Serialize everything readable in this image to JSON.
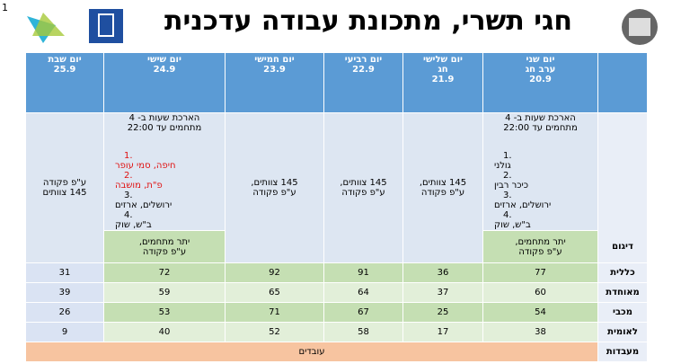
{
  "slide_number": "1",
  "title": "חגי תשרי, מתכונת עבודה עדכנית",
  "table": {
    "columns": [
      {
        "header": [
          "יום שני",
          "ערב חג",
          "20.9"
        ]
      },
      {
        "header": [
          "יום שלישי",
          "חג",
          "21.9"
        ]
      },
      {
        "header": [
          "יום רביעי",
          "22.9"
        ]
      },
      {
        "header": [
          "יום חמישי",
          "23.9"
        ]
      },
      {
        "header": [
          "יום שישי",
          "24.9"
        ]
      },
      {
        "header": [
          "יום שבת",
          "25.9"
        ]
      }
    ],
    "sampling": {
      "label": "דיגום",
      "cells": [
        {
          "intro": [
            "הארכת שעות ב- 4",
            "מתחמים עד 22:00"
          ],
          "items": [
            {
              "num": "1.",
              "text": "גולני"
            },
            {
              "num": "2.",
              "text": "כיכר רבין"
            },
            {
              "num": "3.",
              "text": "ירושלים, ארזים"
            },
            {
              "num": "4.",
              "text": "ב\"ש, שוק"
            }
          ],
          "green": [
            "יתר מתחמים,",
            "ע\"פ פקודה"
          ]
        },
        {
          "lines": [
            "145 צוותים,",
            "ע\"פ פקודה"
          ]
        },
        {
          "lines": [
            "145 צוותים,",
            "ע\"פ פקודה"
          ]
        },
        {
          "lines": [
            "145 צוותים,",
            "ע\"פ פקודה"
          ]
        },
        {
          "intro": [
            "הארכת שעות ב- 4",
            "מתחמים עד 22:00"
          ],
          "items": [
            {
              "num": "1.",
              "text": "חיפה, סמי עופר",
              "color": "#e01010"
            },
            {
              "num": "2.",
              "text": "פ\"ת, מושבה",
              "color": "#e01010"
            },
            {
              "num": "3.",
              "text": "ירושלים, ארזים"
            },
            {
              "num": "4.",
              "text": "ב\"ש, שוק"
            }
          ],
          "green": [
            "יתר מתחמים,",
            "ע\"פ פקודה"
          ]
        },
        {
          "lines": [
            "ע\"פ פקודה",
            "145 צוותים"
          ]
        }
      ]
    },
    "rows": [
      {
        "label": "כללית",
        "values": [
          77,
          36,
          91,
          92,
          72,
          31
        ]
      },
      {
        "label": "מאוחדת",
        "values": [
          60,
          37,
          64,
          65,
          59,
          39
        ]
      },
      {
        "label": "מכבי",
        "values": [
          54,
          25,
          67,
          71,
          53,
          26
        ]
      },
      {
        "label": "לאומית",
        "values": [
          38,
          17,
          58,
          52,
          40,
          9
        ]
      }
    ],
    "labs": {
      "label": "מעבדות",
      "text": "עובדים"
    }
  }
}
